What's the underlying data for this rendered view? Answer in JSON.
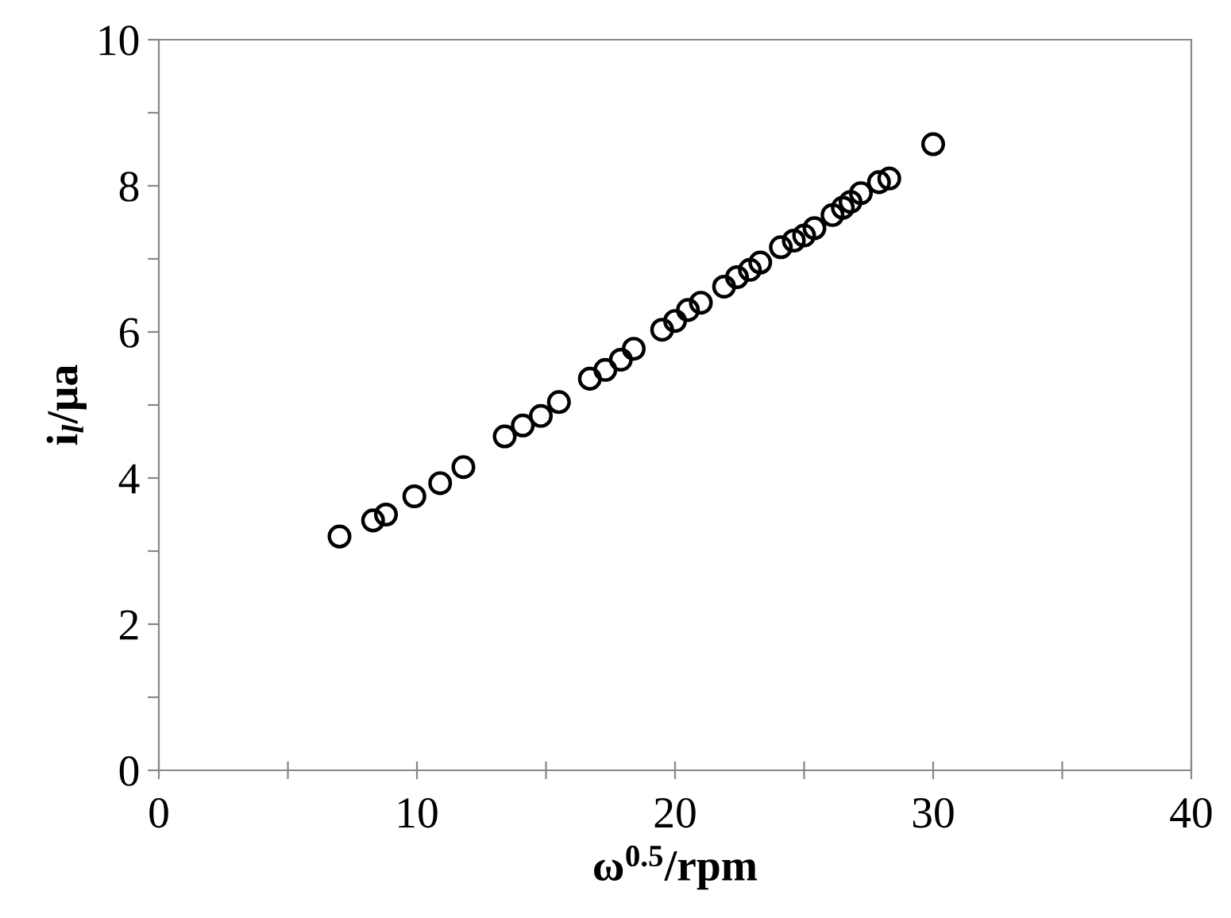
{
  "chart_data": {
    "type": "scatter",
    "xlabel": "ω$^{0.5}$/rpm",
    "ylabel": "i$_{l}$/μa",
    "x": [
      7.0,
      8.3,
      8.8,
      9.9,
      10.9,
      11.8,
      13.4,
      14.1,
      14.8,
      15.5,
      16.7,
      17.3,
      17.9,
      18.4,
      19.5,
      20.0,
      20.5,
      21.0,
      21.9,
      22.4,
      22.9,
      23.3,
      24.1,
      24.6,
      25.0,
      25.4,
      26.1,
      26.5,
      26.8,
      27.2,
      27.9,
      28.3,
      30.0
    ],
    "values": [
      3.2,
      3.42,
      3.5,
      3.75,
      3.93,
      4.15,
      4.57,
      4.72,
      4.85,
      5.04,
      5.36,
      5.48,
      5.62,
      5.77,
      6.03,
      6.15,
      6.3,
      6.4,
      6.62,
      6.75,
      6.85,
      6.95,
      7.16,
      7.25,
      7.32,
      7.42,
      7.6,
      7.7,
      7.78,
      7.9,
      8.05,
      8.1,
      8.57
    ],
    "color": "#000000",
    "marker": "circle",
    "grid": false,
    "legend": false,
    "xlim": [
      0,
      40
    ],
    "ylim": [
      0,
      10
    ],
    "xticks": [
      0,
      {
        "value": 5,
        "label": null
      },
      10,
      {
        "value": 15,
        "label": null
      },
      20,
      {
        "value": 25,
        "label": null
      },
      30,
      {
        "value": 35,
        "label": null
      },
      40
    ],
    "yticks": [
      0,
      {
        "value": 1,
        "label": null
      },
      2,
      {
        "value": 3,
        "label": null
      },
      4,
      {
        "value": 5,
        "label": null
      },
      6,
      {
        "value": 7,
        "label": null
      },
      8,
      {
        "value": 9,
        "label": null
      },
      10
    ]
  }
}
